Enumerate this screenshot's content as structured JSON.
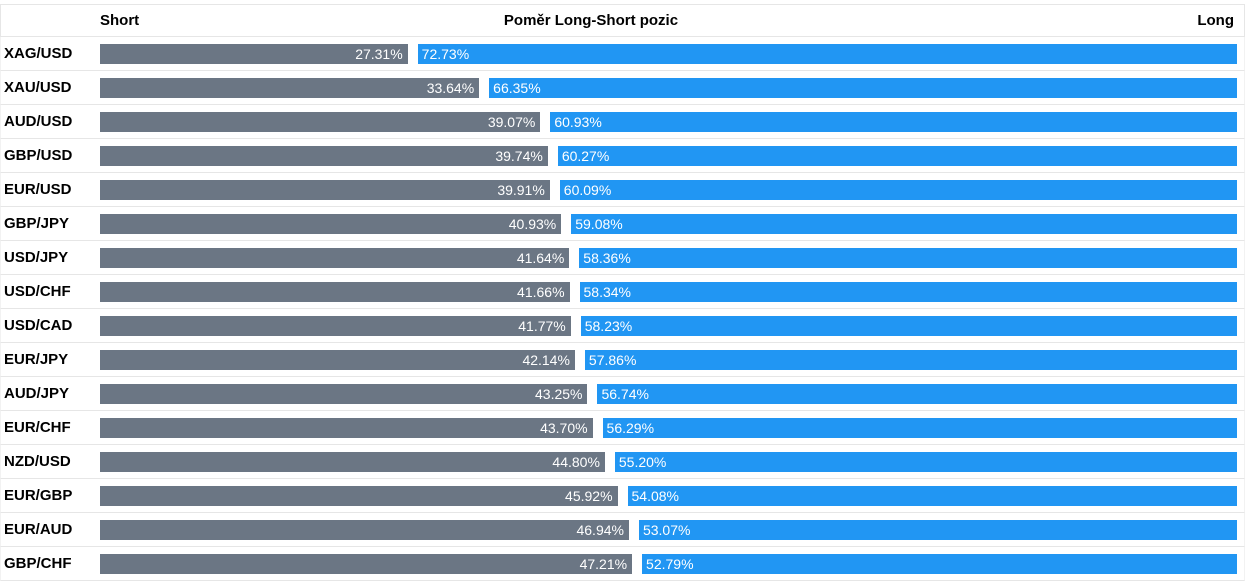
{
  "header": {
    "short_label": "Short",
    "title": "Poměr Long-Short pozic",
    "long_label": "Long"
  },
  "colors": {
    "short": "#6b7684",
    "long": "#2196f3"
  },
  "chart_data": {
    "type": "bar",
    "orientation": "horizontal-stacked",
    "title": "Poměr Long-Short pozic",
    "categories": [
      "XAG/USD",
      "XAU/USD",
      "AUD/USD",
      "GBP/USD",
      "EUR/USD",
      "GBP/JPY",
      "USD/JPY",
      "USD/CHF",
      "USD/CAD",
      "EUR/JPY",
      "AUD/JPY",
      "EUR/CHF",
      "NZD/USD",
      "EUR/GBP",
      "EUR/AUD",
      "GBP/CHF"
    ],
    "series": [
      {
        "name": "Short",
        "values": [
          27.31,
          33.64,
          39.07,
          39.74,
          39.91,
          40.93,
          41.64,
          41.66,
          41.77,
          42.14,
          43.25,
          43.7,
          44.8,
          45.92,
          46.94,
          47.21
        ],
        "labels": [
          "27.31%",
          "33.64%",
          "39.07%",
          "39.74%",
          "39.91%",
          "40.93%",
          "41.64%",
          "41.66%",
          "41.77%",
          "42.14%",
          "43.25%",
          "43.70%",
          "44.80%",
          "45.92%",
          "46.94%",
          "47.21%"
        ]
      },
      {
        "name": "Long",
        "values": [
          72.73,
          66.35,
          60.93,
          60.27,
          60.09,
          59.08,
          58.36,
          58.34,
          58.23,
          57.86,
          56.74,
          56.29,
          55.2,
          54.08,
          53.07,
          52.79
        ],
        "labels": [
          "72.73%",
          "66.35%",
          "60.93%",
          "60.27%",
          "60.09%",
          "59.08%",
          "58.36%",
          "58.34%",
          "58.23%",
          "57.86%",
          "56.74%",
          "56.29%",
          "55.20%",
          "54.08%",
          "53.07%",
          "52.79%"
        ]
      }
    ],
    "unit": "%",
    "xlim": [
      0,
      100
    ]
  }
}
